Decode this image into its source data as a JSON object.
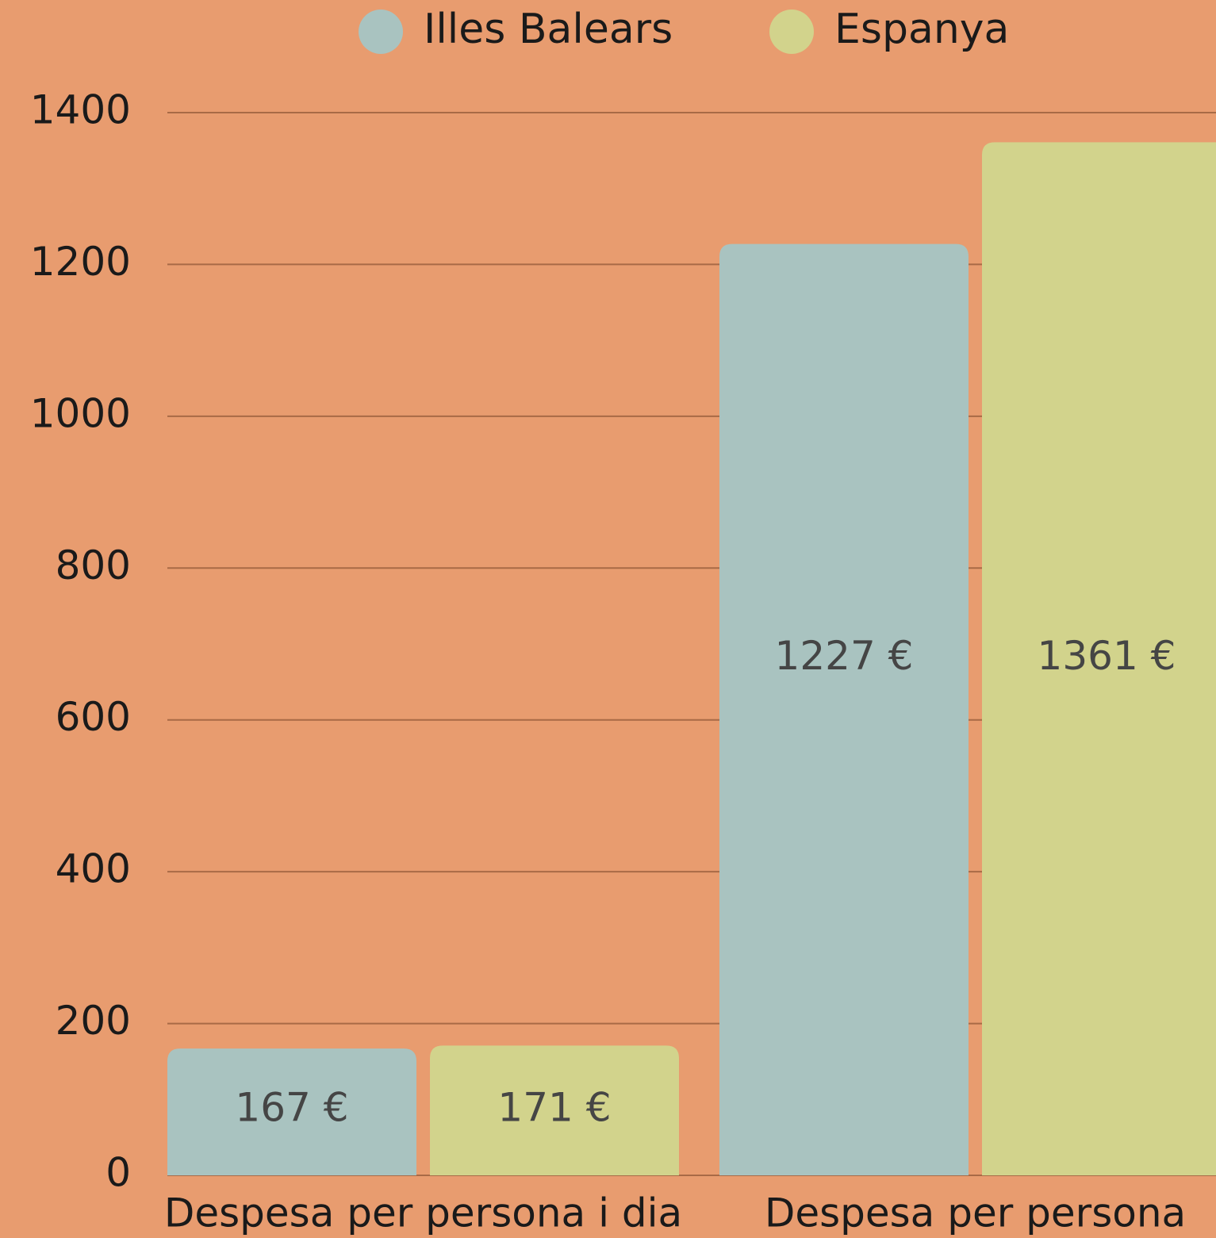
{
  "chart_data": {
    "type": "bar",
    "categories": [
      "Despesa per persona i dia",
      "Despesa per persona"
    ],
    "series": [
      {
        "name": "Illes Balears",
        "color": "#a9c3c0",
        "values": [
          167,
          1227
        ],
        "value_labels": [
          "167 €",
          "1227 €"
        ]
      },
      {
        "name": "Espanya",
        "color": "#d2d38c",
        "values": [
          171,
          1361
        ],
        "value_labels": [
          "171 €",
          "1361 €"
        ]
      }
    ],
    "ylim": [
      0,
      1400
    ],
    "yticks": [
      0,
      200,
      400,
      600,
      800,
      1000,
      1200,
      1400
    ],
    "grid": true,
    "legend": "top"
  }
}
